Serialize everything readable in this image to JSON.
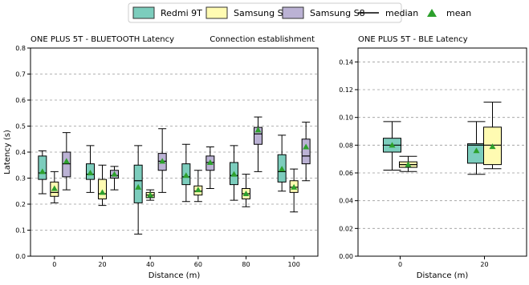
{
  "legend": {
    "items": [
      {
        "label": "Redmi 9T",
        "kind": "box",
        "color": "#7ccdbd"
      },
      {
        "label": "Samsung S20",
        "kind": "box",
        "color": "#fffbb2"
      },
      {
        "label": "Samsung S8",
        "kind": "box",
        "color": "#bbb2d4"
      },
      {
        "label": "median",
        "kind": "line",
        "color": "#000000"
      },
      {
        "label": "mean",
        "kind": "triangle",
        "color": "#2ca02c"
      }
    ]
  },
  "chart_data": [
    {
      "type": "box",
      "title": "ONE PLUS 5T - BLUETOOTH Latency",
      "annotation": "Connection establishment",
      "xlabel": "Distance (m)",
      "ylabel": "Latency (s)",
      "ylim": [
        0,
        0.8
      ],
      "yticks": [
        "0.0",
        "0.1",
        "0.2",
        "0.3",
        "0.4",
        "0.5",
        "0.6",
        "0.7",
        "0.8"
      ],
      "categories": [
        "0",
        "20",
        "40",
        "60",
        "80",
        "100"
      ],
      "grid": "horizontal dashed",
      "series": [
        {
          "name": "Redmi 9T",
          "color": "#7ccdbd",
          "boxes": [
            {
              "min": 0.24,
              "q1": 0.295,
              "median": 0.32,
              "q3": 0.385,
              "max": 0.405,
              "mean": 0.325
            },
            {
              "min": 0.245,
              "q1": 0.295,
              "median": 0.315,
              "q3": 0.355,
              "max": 0.425,
              "mean": 0.32
            },
            {
              "min": 0.085,
              "q1": 0.205,
              "median": 0.29,
              "q3": 0.35,
              "max": 0.425,
              "mean": 0.265
            },
            {
              "min": 0.21,
              "q1": 0.275,
              "median": 0.305,
              "q3": 0.355,
              "max": 0.43,
              "mean": 0.31
            },
            {
              "min": 0.215,
              "q1": 0.275,
              "median": 0.31,
              "q3": 0.36,
              "max": 0.425,
              "mean": 0.315
            },
            {
              "min": 0.25,
              "q1": 0.285,
              "median": 0.325,
              "q3": 0.39,
              "max": 0.465,
              "mean": 0.335
            }
          ]
        },
        {
          "name": "Samsung S20",
          "color": "#fffbb2",
          "boxes": [
            {
              "min": 0.205,
              "q1": 0.23,
              "median": 0.245,
              "q3": 0.285,
              "max": 0.325,
              "mean": 0.26
            },
            {
              "min": 0.195,
              "q1": 0.22,
              "median": 0.24,
              "q3": 0.295,
              "max": 0.35,
              "mean": 0.245
            },
            {
              "min": 0.215,
              "q1": 0.225,
              "median": 0.235,
              "q3": 0.245,
              "max": 0.255,
              "mean": 0.235
            },
            {
              "min": 0.21,
              "q1": 0.235,
              "median": 0.25,
              "q3": 0.27,
              "max": 0.33,
              "mean": 0.255
            },
            {
              "min": 0.19,
              "q1": 0.22,
              "median": 0.24,
              "q3": 0.26,
              "max": 0.315,
              "mean": 0.24
            },
            {
              "min": 0.17,
              "q1": 0.245,
              "median": 0.265,
              "q3": 0.29,
              "max": 0.335,
              "mean": 0.265
            }
          ]
        },
        {
          "name": "Samsung S8",
          "color": "#bbb2d4",
          "boxes": [
            {
              "min": 0.255,
              "q1": 0.305,
              "median": 0.355,
              "q3": 0.4,
              "max": 0.475,
              "mean": 0.365
            },
            {
              "min": 0.255,
              "q1": 0.3,
              "median": 0.31,
              "q3": 0.33,
              "max": 0.345,
              "mean": 0.315
            },
            {
              "min": 0.245,
              "q1": 0.33,
              "median": 0.365,
              "q3": 0.395,
              "max": 0.49,
              "mean": 0.365
            },
            {
              "min": 0.26,
              "q1": 0.33,
              "median": 0.36,
              "q3": 0.385,
              "max": 0.42,
              "mean": 0.36
            },
            {
              "min": 0.325,
              "q1": 0.43,
              "median": 0.47,
              "q3": 0.495,
              "max": 0.535,
              "mean": 0.485
            },
            {
              "min": 0.29,
              "q1": 0.355,
              "median": 0.385,
              "q3": 0.45,
              "max": 0.515,
              "mean": 0.42
            }
          ]
        }
      ]
    },
    {
      "type": "box",
      "title": "ONE PLUS 5T - BLE Latency",
      "xlabel": "Distance (m)",
      "ylabel": "",
      "ylim": [
        0,
        0.15
      ],
      "yticks": [
        "0.00",
        "0.02",
        "0.04",
        "0.06",
        "0.08",
        "0.10",
        "0.12",
        "0.14"
      ],
      "categories": [
        "0",
        "20"
      ],
      "grid": "horizontal dashed",
      "series": [
        {
          "name": "Redmi 9T",
          "color": "#7ccdbd",
          "boxes": [
            {
              "min": 0.062,
              "q1": 0.075,
              "median": 0.08,
              "q3": 0.085,
              "max": 0.097,
              "mean": 0.08
            },
            {
              "min": 0.059,
              "q1": 0.067,
              "median": 0.08,
              "q3": 0.081,
              "max": 0.097,
              "mean": 0.076
            }
          ]
        },
        {
          "name": "Samsung S20",
          "color": "#fffbb2",
          "boxes": [
            {
              "min": 0.061,
              "q1": 0.064,
              "median": 0.066,
              "q3": 0.068,
              "max": 0.072,
              "mean": 0.066
            },
            {
              "min": 0.063,
              "q1": 0.066,
              "median": 0.08,
              "q3": 0.093,
              "max": 0.111,
              "mean": 0.079
            }
          ]
        }
      ]
    }
  ]
}
